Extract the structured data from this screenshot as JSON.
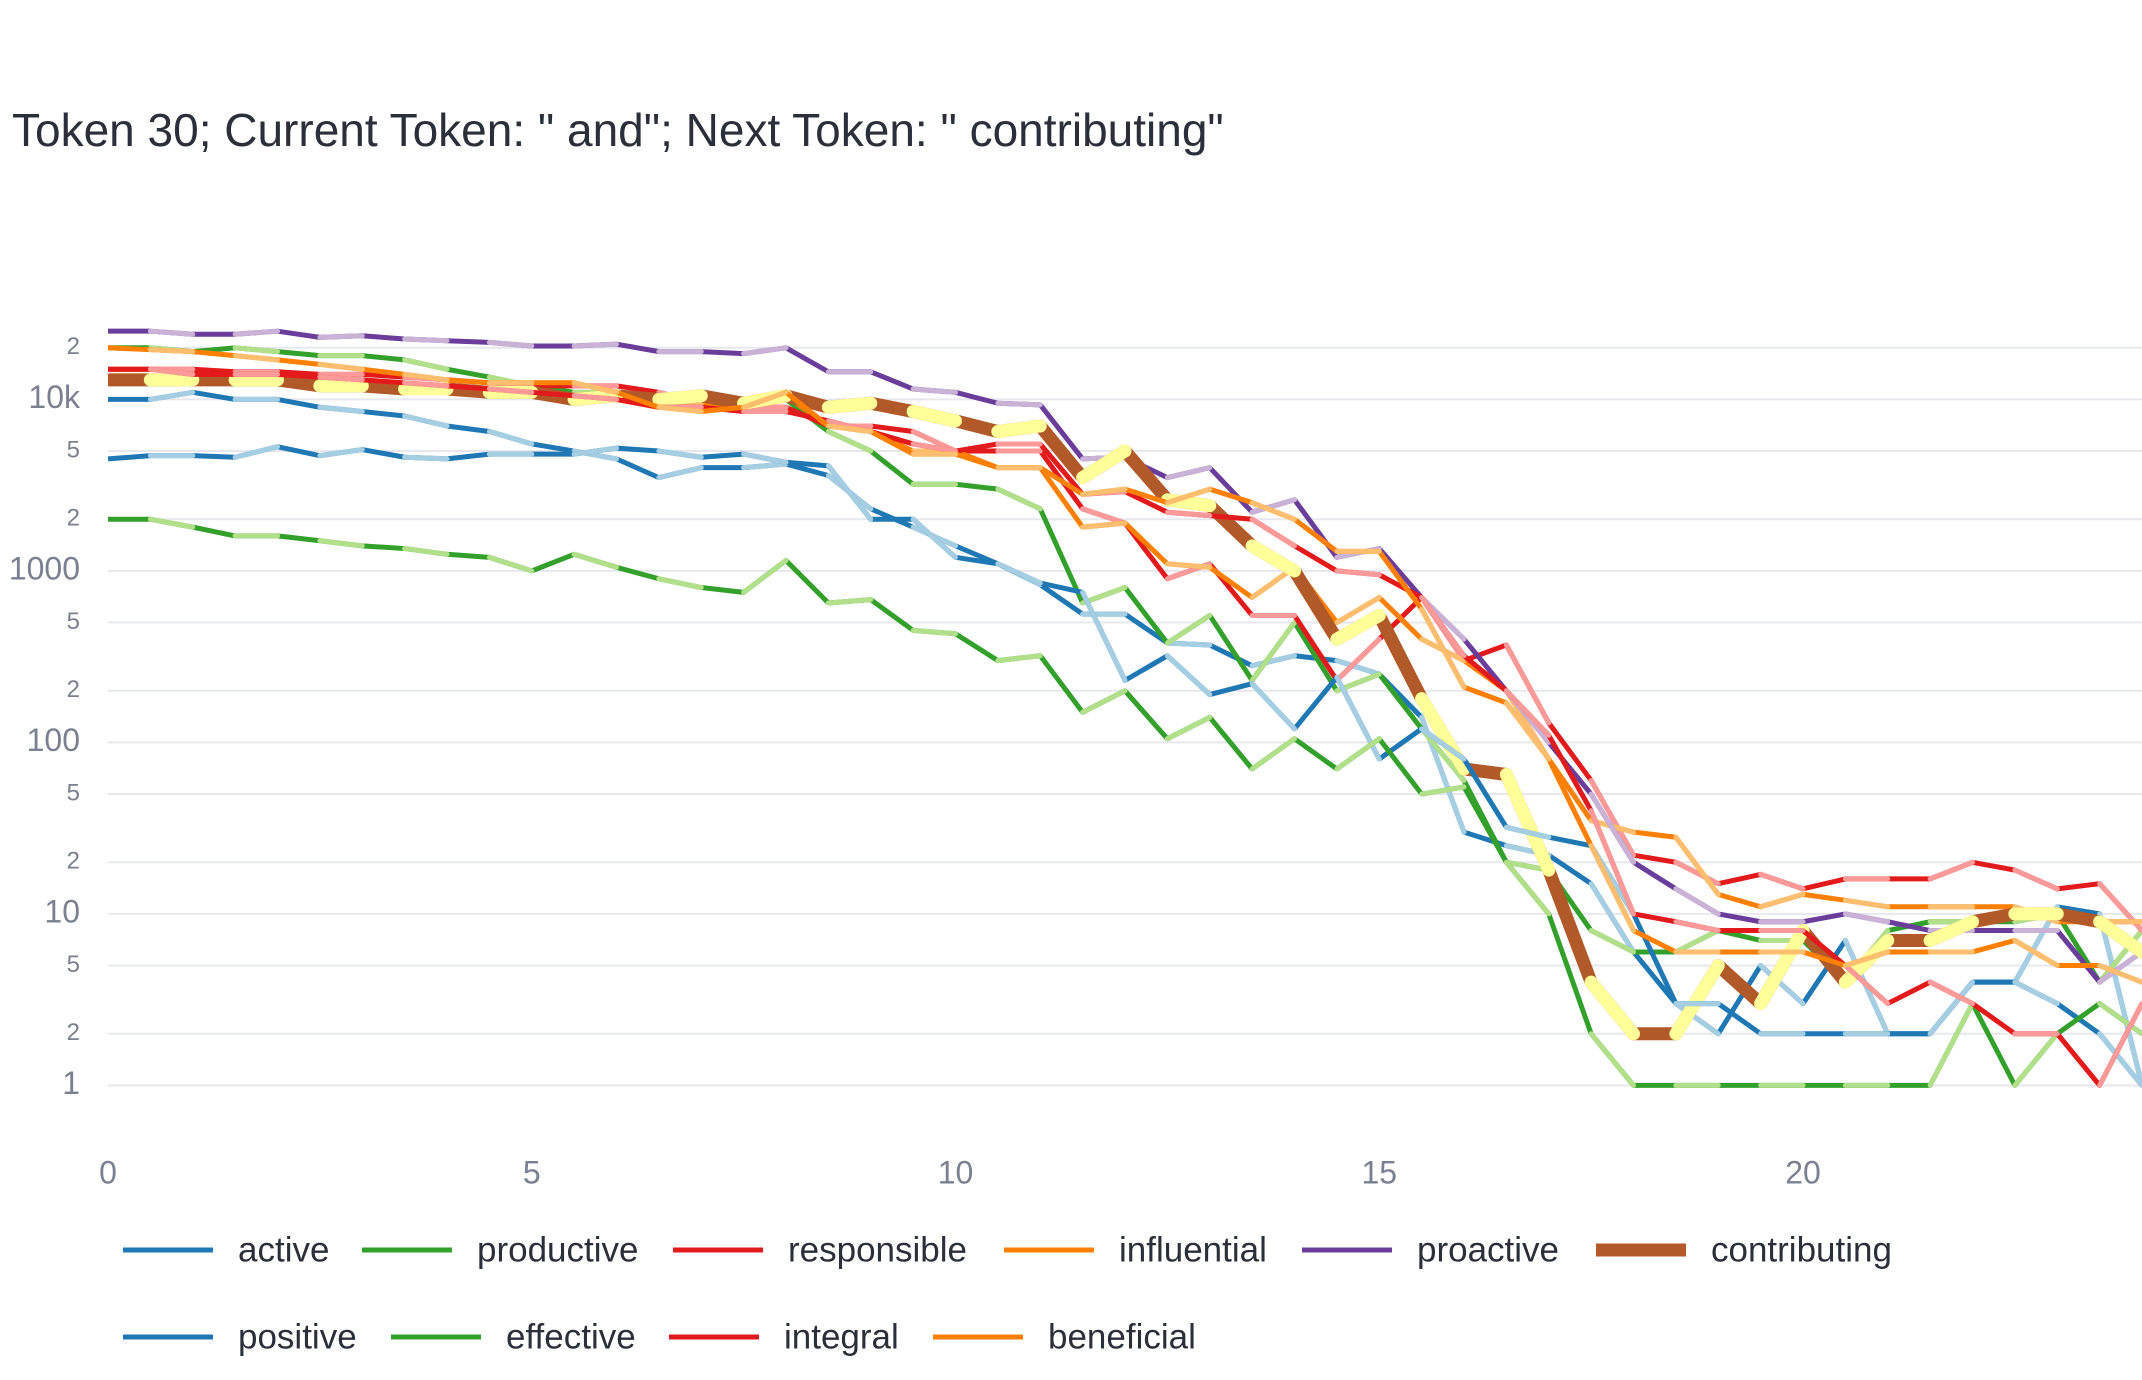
{
  "chart_data": {
    "type": "line",
    "title": "Token 30; Current Token: \" and\"; Next Token: \" contributing\"",
    "log_y": true,
    "grid": true,
    "x": [
      0,
      0.5,
      1,
      1.5,
      2,
      2.5,
      3,
      3.5,
      4,
      4.5,
      5,
      5.5,
      6,
      6.5,
      7,
      7.5,
      8,
      8.5,
      9,
      9.5,
      10,
      10.5,
      11,
      11.5,
      12,
      12.5,
      13,
      13.5,
      14,
      14.5,
      15,
      15.5,
      16,
      16.5,
      17,
      17.5,
      18,
      18.5,
      19,
      19.5,
      20,
      20.5,
      21,
      21.5,
      22,
      22.5,
      23,
      23.5,
      24
    ],
    "xlim": [
      0,
      24
    ],
    "xticks": [
      0,
      5,
      10,
      15,
      20
    ],
    "ylim": [
      0.42,
      38000
    ],
    "yticks": [
      1,
      2,
      5,
      10,
      {
        "value": 20,
        "label": "2"
      },
      {
        "value": 50,
        "label": "5"
      },
      100,
      {
        "value": 200,
        "label": "2"
      },
      {
        "value": 500,
        "label": "5"
      },
      1000,
      {
        "value": 2000,
        "label": "2"
      },
      {
        "value": 5000,
        "label": "5"
      },
      {
        "value": 10000,
        "label": "10k"
      },
      {
        "value": 20000,
        "label": "2"
      }
    ],
    "series": [
      {
        "name": "active",
        "color": "#1f78b4",
        "color_alt": "#a6cee3",
        "values": [
          10000,
          10000,
          11000,
          10000,
          10000,
          9000,
          8500,
          8000,
          7000,
          6500,
          5500,
          5000,
          4500,
          3500,
          4000,
          4000,
          4200,
          3600,
          2300,
          1800,
          1400,
          1100,
          830,
          560,
          560,
          380,
          370,
          280,
          320,
          300,
          250,
          140,
          30,
          25,
          22,
          15,
          6,
          3,
          2,
          5,
          3,
          7,
          2,
          2,
          4,
          4,
          11,
          10,
          1
        ]
      },
      {
        "name": "productive",
        "color": "#33a02c",
        "color_alt": "#b2df8a",
        "values": [
          20000,
          20000,
          19000,
          20000,
          19000,
          18000,
          18000,
          17000,
          15000,
          13500,
          12000,
          11000,
          11000,
          10500,
          10000,
          10000,
          10000,
          6500,
          5000,
          3200,
          3200,
          3000,
          2300,
          650,
          800,
          380,
          550,
          230,
          500,
          200,
          250,
          120,
          60,
          20,
          18,
          8,
          6,
          6,
          8,
          7,
          7,
          4,
          8,
          9,
          9,
          9,
          10,
          4,
          8
        ]
      },
      {
        "name": "responsible",
        "color": "#e31a1c",
        "color_alt": "#fb9a99",
        "values": [
          15000,
          15000,
          15000,
          14500,
          14500,
          14000,
          14000,
          13500,
          13000,
          12500,
          12000,
          12000,
          12000,
          11000,
          9500,
          9000,
          9000,
          7000,
          7000,
          6500,
          5000,
          5000,
          5000,
          2300,
          1900,
          900,
          1100,
          550,
          550,
          230,
          400,
          700,
          300,
          370,
          130,
          60,
          22,
          20,
          15,
          17,
          14,
          16,
          16,
          16,
          20,
          18,
          14,
          15,
          8
        ]
      },
      {
        "name": "influential",
        "color": "#ff7f00",
        "color_alt": "#fdbf6f",
        "values": [
          13000,
          13000,
          13000,
          13000,
          13000,
          12500,
          12500,
          12000,
          12000,
          11000,
          10500,
          10000,
          10000,
          9000,
          9500,
          9000,
          10500,
          7000,
          6500,
          5000,
          5000,
          4000,
          4000,
          1800,
          1900,
          1100,
          1050,
          700,
          1050,
          500,
          700,
          400,
          300,
          200,
          80,
          35,
          30,
          28,
          13,
          11,
          13,
          12,
          11,
          11,
          11,
          11,
          9,
          9,
          9
        ]
      },
      {
        "name": "proactive",
        "color": "#6a3d9a",
        "color_alt": "#cab2d6",
        "values": [
          25000,
          25000,
          24000,
          24000,
          25000,
          23000,
          23500,
          22500,
          22000,
          21500,
          20500,
          20500,
          21000,
          19000,
          19000,
          18500,
          20000,
          14500,
          14500,
          11500,
          11000,
          9500,
          9300,
          4500,
          4600,
          3500,
          4000,
          2200,
          2600,
          1200,
          1350,
          700,
          400,
          200,
          100,
          50,
          20,
          14,
          10,
          9,
          9,
          10,
          9,
          8,
          8,
          8,
          8,
          4,
          6
        ]
      },
      {
        "name": "contributing",
        "color": "#b15928",
        "color_alt": "#ffff99",
        "highlight": true,
        "values": [
          13000,
          13000,
          13000,
          13000,
          13000,
          12000,
          12000,
          11500,
          11500,
          11000,
          11000,
          10000,
          10500,
          10000,
          10500,
          9500,
          10500,
          9000,
          9500,
          8500,
          7500,
          6500,
          7000,
          3500,
          5000,
          2600,
          2400,
          1400,
          1000,
          400,
          550,
          180,
          70,
          65,
          18,
          4,
          2,
          2,
          5,
          3,
          8,
          4,
          7,
          7,
          9,
          10,
          10,
          9,
          6
        ]
      },
      {
        "name": "positive",
        "color": "#1f78b4",
        "color_alt": "#a6cee3",
        "values": [
          4500,
          4700,
          4700,
          4600,
          5300,
          4700,
          5100,
          4600,
          4500,
          4800,
          4800,
          4800,
          5200,
          5000,
          4600,
          4800,
          4300,
          4100,
          2000,
          2000,
          1200,
          1100,
          850,
          750,
          230,
          320,
          190,
          220,
          120,
          240,
          80,
          120,
          80,
          32,
          28,
          25,
          10,
          3,
          3,
          2,
          2,
          2,
          2,
          2,
          4,
          4,
          3,
          2,
          1
        ]
      },
      {
        "name": "effective",
        "color": "#33a02c",
        "color_alt": "#b2df8a",
        "values": [
          2000,
          2000,
          1800,
          1600,
          1600,
          1500,
          1400,
          1350,
          1250,
          1200,
          1000,
          1250,
          1050,
          900,
          800,
          750,
          1150,
          650,
          680,
          450,
          430,
          300,
          320,
          150,
          200,
          105,
          140,
          70,
          105,
          70,
          105,
          50,
          55,
          20,
          10,
          2,
          1,
          1,
          1,
          1,
          1,
          1,
          1,
          1,
          3,
          1,
          2,
          3,
          2
        ]
      },
      {
        "name": "integral",
        "color": "#e31a1c",
        "color_alt": "#fb9a99",
        "values": [
          15000,
          15000,
          14000,
          14000,
          14000,
          13500,
          13000,
          12500,
          12000,
          11500,
          11000,
          10500,
          10000,
          9000,
          9000,
          8500,
          8500,
          7500,
          6500,
          5500,
          5000,
          5500,
          5500,
          2800,
          2900,
          2200,
          2100,
          2000,
          1400,
          1000,
          950,
          700,
          320,
          200,
          110,
          40,
          10,
          9,
          8,
          8,
          8,
          5,
          3,
          4,
          3,
          2,
          2,
          1,
          3
        ]
      },
      {
        "name": "beneficial",
        "color": "#ff7f00",
        "color_alt": "#fdbf6f",
        "values": [
          20000,
          19500,
          19000,
          18000,
          17000,
          16000,
          15000,
          14000,
          13000,
          12500,
          12500,
          12500,
          11000,
          9000,
          8500,
          9000,
          11000,
          7000,
          6500,
          4800,
          4800,
          4000,
          4000,
          2800,
          3000,
          2500,
          3000,
          2500,
          2000,
          1300,
          1300,
          600,
          210,
          170,
          80,
          25,
          8,
          6,
          6,
          6,
          6,
          5,
          6,
          6,
          6,
          7,
          5,
          5,
          4
        ]
      }
    ]
  }
}
